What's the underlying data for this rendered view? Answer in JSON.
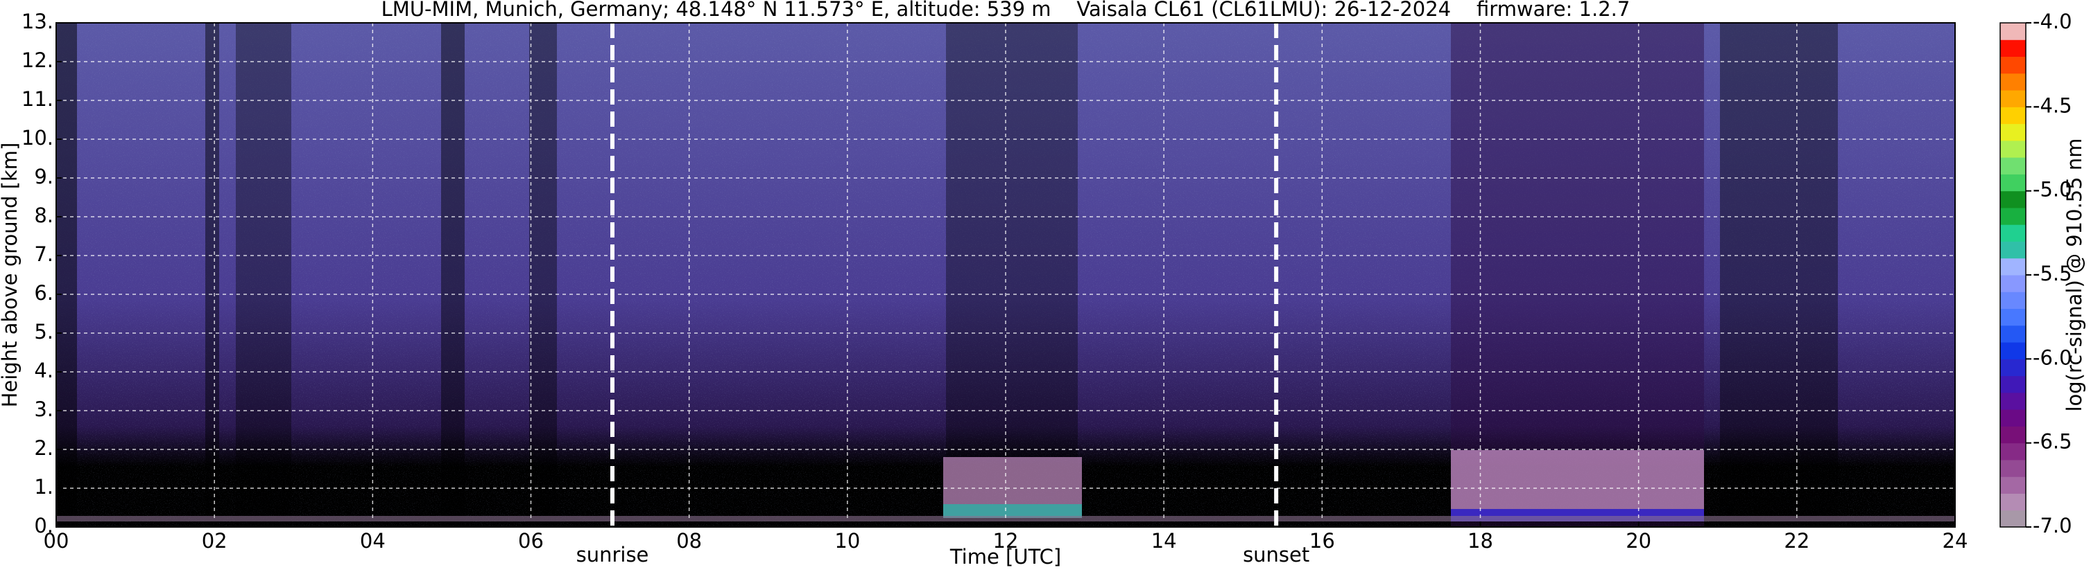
{
  "chart_data": {
    "type": "heatmap",
    "title": "LMU-MIM, Munich, Germany; 48.148° N 11.573° E, altitude: 539 m    Vaisala CL61 (CL61LMU): 26-12-2024    firmware: 1.2.7",
    "x_label": "Time [UTC]",
    "y_label": "Height above ground [km]",
    "xlim": [
      0,
      24
    ],
    "xticks": [
      {
        "value": 0,
        "label": "00"
      },
      {
        "value": 2,
        "label": "02"
      },
      {
        "value": 4,
        "label": "04"
      },
      {
        "value": 6,
        "label": "06"
      },
      {
        "value": 8,
        "label": "08"
      },
      10,
      12,
      14,
      16,
      18,
      20,
      22,
      24
    ],
    "ylim": [
      0,
      13
    ],
    "yticks": [
      {
        "value": 0,
        "label": "0."
      },
      {
        "value": 1,
        "label": "1."
      },
      {
        "value": 2,
        "label": "2."
      },
      {
        "value": 3,
        "label": "3."
      },
      {
        "value": 4,
        "label": "4."
      },
      {
        "value": 5,
        "label": "5."
      },
      {
        "value": 6,
        "label": "6."
      },
      {
        "value": 7,
        "label": "7."
      },
      {
        "value": 8,
        "label": "8."
      },
      {
        "value": 9,
        "label": "9."
      },
      {
        "value": 10,
        "label": "10."
      },
      {
        "value": 11,
        "label": "11."
      },
      {
        "value": 12,
        "label": "12."
      },
      {
        "value": 13,
        "label": "13."
      }
    ],
    "grid": true,
    "annotations": [
      {
        "text": "sunrise",
        "x": 7.03
      },
      {
        "text": "sunset",
        "x": 15.42
      }
    ],
    "colorbar": {
      "label": "log(rc-signal) @ 910.55 nm",
      "lim": [
        -7.0,
        -4.0
      ],
      "ticks": [
        {
          "value": -7.0,
          "label": "-7.0"
        },
        {
          "value": -6.5,
          "label": "-6.5"
        },
        {
          "value": -6.0,
          "label": "-6.0"
        },
        {
          "value": -5.5,
          "label": "-5.5"
        },
        {
          "value": -5.0,
          "label": "-5.0"
        },
        {
          "value": -4.5,
          "label": "-4.5"
        },
        {
          "value": -4.0,
          "label": "-4.0"
        }
      ],
      "colors": [
        "#a898a8",
        "#b48cb4",
        "#a468a4",
        "#944a94",
        "#862a86",
        "#781078",
        "#6a0a86",
        "#5a10a0",
        "#4018b8",
        "#2828d0",
        "#1038e8",
        "#2458f4",
        "#4878ff",
        "#6888ff",
        "#8898ff",
        "#a0b4ff",
        "#30c0a8",
        "#20d090",
        "#18b040",
        "#109020",
        "#40d060",
        "#70e070",
        "#b0f050",
        "#e8f020",
        "#ffd000",
        "#ffa800",
        "#ff8000",
        "#ff4800",
        "#ff1000",
        "#f0b8b8"
      ]
    }
  }
}
